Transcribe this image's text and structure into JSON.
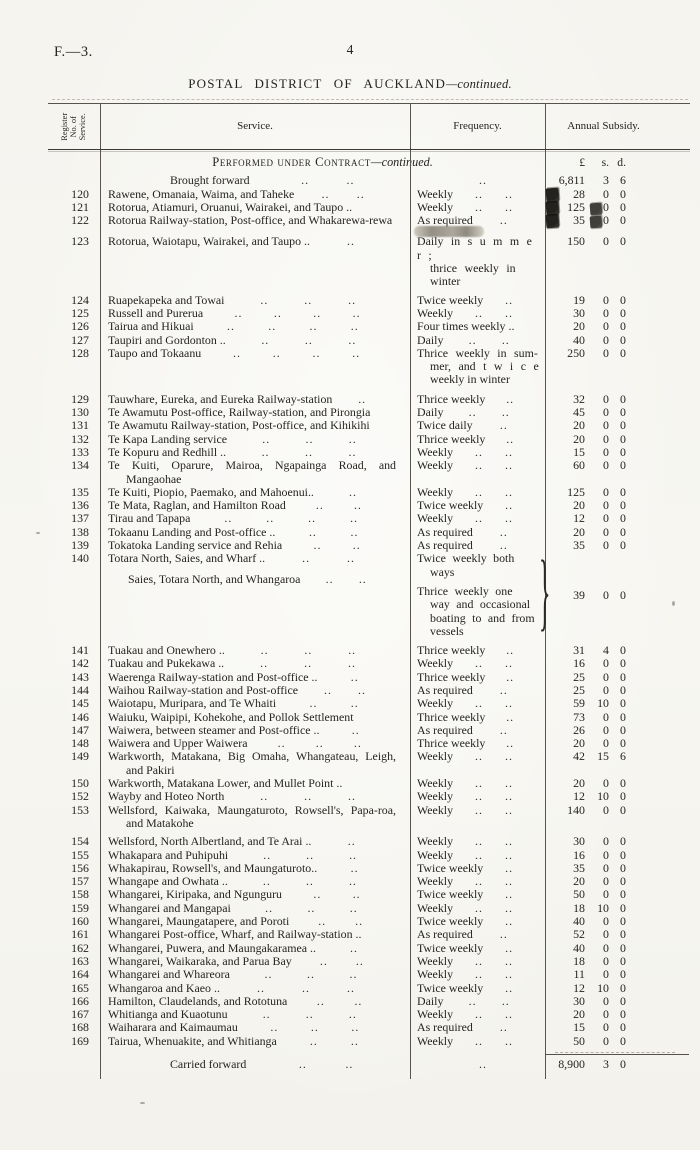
{
  "page": {
    "doc_ref": "F.—3.",
    "page_number": "4",
    "title": "POSTAL DISTRICT OF AUCKLAND",
    "title_continued": "—continued.",
    "section_heading": "Performed under Contract",
    "section_continued": "—continued.",
    "currency": {
      "pounds": "£",
      "shillings": "s.",
      "pence": "d."
    }
  },
  "table": {
    "dot_pair": "..",
    "headers": {
      "register": [
        "Register",
        "No. of",
        "Service."
      ],
      "service": "Service.",
      "frequency": "Frequency.",
      "subsidy": "Annual Subsidy."
    },
    "rows": [
      {
        "type": "total",
        "service": "Brought forward",
        "sd": 2,
        "f": "",
        "fd": 1,
        "L": "6,811",
        "S": "3",
        "D": "6"
      },
      {
        "no": "120",
        "service": "Rawene, Omanaia, Waima, and Taheke",
        "sd": 2,
        "f": "Weekly",
        "fd": 2,
        "L": "28",
        "S": "0",
        "D": "0",
        "marks": [
          "stamp-left"
        ]
      },
      {
        "no": "121",
        "service": "Rotorua, Atiamuri, Oruanui, Wairakei, and Taupo ..",
        "sd": 0,
        "f": "Weekly",
        "fd": 2,
        "L": "125",
        "S": "0",
        "D": "0",
        "marks": [
          "stamp-left",
          "stamp-mid"
        ]
      },
      {
        "no": "122",
        "service": "Rotorua Railway-station, Post-office, and Whakarewa-rewa",
        "sd": 0,
        "f": "As required",
        "fd": 1,
        "L": "35",
        "S": "0",
        "D": "0",
        "marks": [
          "stamp-left",
          "stamp-mid",
          "smudge-frequency"
        ]
      },
      {
        "no": "123",
        "gap": 8,
        "service": "Rotorua, Waiotapu, Wairakei, and Taupo ..",
        "sd": 1,
        "fl": [
          "Daily in s u m m e r ;",
          "thrice weekly in",
          "winter"
        ],
        "L": "150",
        "S": "0",
        "D": "0"
      },
      {
        "no": "124",
        "gap": 5,
        "service": "Ruapekapeka and Towai",
        "sd": 3,
        "f": "Twice weekly",
        "fd": 1,
        "L": "19",
        "S": "0",
        "D": "0"
      },
      {
        "no": "125",
        "service": "Russell and Purerua",
        "sd": 4,
        "f": "Weekly",
        "fd": 2,
        "L": "30",
        "S": "0",
        "D": "0"
      },
      {
        "no": "126",
        "service": "Tairua and Hikuai",
        "sd": 4,
        "f": "Four times weekly ..",
        "fd": 0,
        "L": "20",
        "S": "0",
        "D": "0"
      },
      {
        "no": "127",
        "service": "Taupiri and Gordonton ..",
        "sd": 3,
        "f": "Daily",
        "fd": 2,
        "L": "40",
        "S": "0",
        "D": "0"
      },
      {
        "no": "128",
        "service": "Taupo and Tokaanu",
        "sd": 4,
        "fl": [
          "Thrice weekly in sum-",
          "mer, and t w i c e",
          "weekly in winter"
        ],
        "L": "250",
        "S": "0",
        "D": "0"
      },
      {
        "no": "129",
        "gap": 6,
        "service": "Tauwhare, Eureka, and Eureka Railway-station",
        "sd": 1,
        "f": "Thrice weekly",
        "fd": 1,
        "L": "32",
        "S": "0",
        "D": "0"
      },
      {
        "no": "130",
        "service": "Te Awamutu Post-office, Railway-station, and Pirongia",
        "sd": 0,
        "f": "Daily",
        "fd": 2,
        "L": "45",
        "S": "0",
        "D": "0"
      },
      {
        "no": "131",
        "service": "Te Awamutu Railway-station, Post-office, and Kihikihi",
        "sd": 0,
        "f": "Twice daily",
        "fd": 1,
        "L": "20",
        "S": "0",
        "D": "0"
      },
      {
        "no": "132",
        "service": "Te Kapa Landing service",
        "sd": 3,
        "f": "Thrice weekly",
        "fd": 1,
        "L": "20",
        "S": "0",
        "D": "0"
      },
      {
        "no": "133",
        "service": "Te Kopuru and Redhill ..",
        "sd": 3,
        "f": "Weekly",
        "fd": 2,
        "L": "15",
        "S": "0",
        "D": "0"
      },
      {
        "no": "134",
        "service": "Te Kuiti, Oparure, Mairoa, Ngapainga Road, and Mangaohae",
        "sd": 0,
        "f": "Weekly",
        "fd": 2,
        "L": "60",
        "S": "0",
        "D": "0"
      },
      {
        "no": "135",
        "service": "Te Kuiti, Piopio, Paemako, and Mahoenui..",
        "sd": 1,
        "f": "Weekly",
        "fd": 2,
        "L": "125",
        "S": "0",
        "D": "0"
      },
      {
        "no": "136",
        "service": "Te Mata, Raglan, and Hamilton Road",
        "sd": 2,
        "f": "Twice weekly",
        "fd": 1,
        "L": "20",
        "S": "0",
        "D": "0"
      },
      {
        "no": "137",
        "service": "Tirau and Tapapa",
        "sd": 4,
        "f": "Weekly",
        "fd": 2,
        "L": "12",
        "S": "0",
        "D": "0"
      },
      {
        "no": "138",
        "service": "Tokaanu Landing and Post-office ..",
        "sd": 2,
        "f": "As required",
        "fd": 1,
        "L": "20",
        "S": "0",
        "D": "0"
      },
      {
        "no": "139",
        "service": "Tokatoka Landing service and Rehia",
        "sd": 2,
        "f": "As required",
        "fd": 1,
        "L": "35",
        "S": "0",
        "D": "0"
      },
      {
        "no": "140",
        "type": "double",
        "service": "Totara North, Saies, and Wharf ..",
        "sd": 2,
        "service2": "Saies, Totara North, and Whangaroa",
        "sd2": 2,
        "fl": [
          "Twice weekly both",
          "ways"
        ],
        "fl2": [
          "Thrice weekly one",
          "way and occasional",
          "boating to and from",
          "vessels"
        ],
        "L": "39",
        "S": "0",
        "D": "0"
      },
      {
        "no": "141",
        "gap": 6,
        "service": "Tuakau and Onewhero ..",
        "sd": 3,
        "f": "Thrice weekly",
        "fd": 1,
        "L": "31",
        "S": "4",
        "D": "0"
      },
      {
        "no": "142",
        "service": "Tuakau and Pukekawa ..",
        "sd": 3,
        "f": "Weekly",
        "fd": 2,
        "L": "16",
        "S": "0",
        "D": "0"
      },
      {
        "no": "143",
        "service": "Waerenga Railway-station and Post-office ..",
        "sd": 1,
        "f": "Thrice weekly",
        "fd": 1,
        "L": "25",
        "S": "0",
        "D": "0"
      },
      {
        "no": "144",
        "service": "Waihou Railway-station and Post-office",
        "sd": 2,
        "f": "As required",
        "fd": 1,
        "L": "25",
        "S": "0",
        "D": "0"
      },
      {
        "no": "145",
        "service": "Waiotapu, Muripara, and Te Whaiti",
        "sd": 2,
        "f": "Weekly",
        "fd": 2,
        "L": "59",
        "S": "10",
        "D": "0"
      },
      {
        "no": "146",
        "service": "Waiuku, Waipipi, Kohekohe, and Pollok Settlement",
        "sd": 0,
        "f": "Thrice weekly",
        "fd": 1,
        "L": "73",
        "S": "0",
        "D": "0"
      },
      {
        "no": "147",
        "service": "Waiwera, between steamer and Post-office ..",
        "sd": 1,
        "f": "As required",
        "fd": 1,
        "L": "26",
        "S": "0",
        "D": "0"
      },
      {
        "no": "148",
        "service": "Waiwera and Upper Waiwera",
        "sd": 3,
        "f": "Thrice weekly",
        "fd": 1,
        "L": "20",
        "S": "0",
        "D": "0"
      },
      {
        "no": "149",
        "service": "Warkworth, Matakana, Big Omaha, Whangateau, Leigh, and Pakiri",
        "sd": 0,
        "f": "Weekly",
        "fd": 2,
        "L": "42",
        "S": "15",
        "D": "6"
      },
      {
        "no": "150",
        "service": "Warkworth, Matakana Lower, and Mullet Point ..",
        "sd": 0,
        "f": "Weekly",
        "fd": 2,
        "L": "20",
        "S": "0",
        "D": "0"
      },
      {
        "no": "152",
        "service": "Wayby and Hoteo North",
        "sd": 3,
        "f": "Weekly",
        "fd": 2,
        "L": "12",
        "S": "10",
        "D": "0"
      },
      {
        "no": "153",
        "service": "Wellsford, Kaiwaka, Maungaturoto, Rowsell's, Papa-roa, and Matakohe",
        "sd": 0,
        "f": "Weekly",
        "fd": 2,
        "L": "140",
        "S": "0",
        "D": "0"
      },
      {
        "no": "154",
        "gap": 5,
        "service": "Wellsford, North Albertland, and Te Arai ..",
        "sd": 1,
        "f": "Weekly",
        "fd": 2,
        "L": "30",
        "S": "0",
        "D": "0"
      },
      {
        "no": "155",
        "service": "Whakapara and Puhipuhi",
        "sd": 3,
        "f": "Weekly",
        "fd": 2,
        "L": "16",
        "S": "0",
        "D": "0"
      },
      {
        "no": "156",
        "service": "Whakapirau, Rowsell's, and Maungaturoto..",
        "sd": 1,
        "f": "Twice weekly",
        "fd": 1,
        "L": "35",
        "S": "0",
        "D": "0"
      },
      {
        "no": "157",
        "service": "Whangape and Owhata ..",
        "sd": 3,
        "f": "Weekly",
        "fd": 2,
        "L": "20",
        "S": "0",
        "D": "0"
      },
      {
        "no": "158",
        "service": "Whangarei, Kiripaka, and Ngunguru",
        "sd": 2,
        "f": "Twice weekly",
        "fd": 1,
        "L": "50",
        "S": "0",
        "D": "0"
      },
      {
        "no": "159",
        "service": "Whangarei and Mangapai",
        "sd": 3,
        "f": "Weekly",
        "fd": 2,
        "L": "18",
        "S": "10",
        "D": "0"
      },
      {
        "no": "160",
        "service": "Whangarei, Maungatapere, and Poroti",
        "sd": 2,
        "f": "Twice weekly",
        "fd": 1,
        "L": "40",
        "S": "0",
        "D": "0"
      },
      {
        "no": "161",
        "service": "Whangarei Post-office, Wharf, and Railway-station ..",
        "sd": 0,
        "f": "As required",
        "fd": 1,
        "L": "52",
        "S": "0",
        "D": "0"
      },
      {
        "no": "162",
        "service": "Whangarei, Puwera, and Maungakaramea ..",
        "sd": 1,
        "f": "Twice weekly",
        "fd": 1,
        "L": "40",
        "S": "0",
        "D": "0"
      },
      {
        "no": "163",
        "service": "Whangarei, Waikaraka, and Parua Bay",
        "sd": 2,
        "f": "Weekly",
        "fd": 2,
        "L": "18",
        "S": "0",
        "D": "0"
      },
      {
        "no": "164",
        "service": "Whangarei and Whareora",
        "sd": 3,
        "f": "Weekly",
        "fd": 2,
        "L": "11",
        "S": "0",
        "D": "0"
      },
      {
        "no": "165",
        "service": "Whangaroa and Kaeo ..",
        "sd": 3,
        "f": "Twice weekly",
        "fd": 1,
        "L": "12",
        "S": "10",
        "D": "0"
      },
      {
        "no": "166",
        "service": "Hamilton, Claudelands, and Rototuna",
        "sd": 2,
        "f": "Daily",
        "fd": 2,
        "L": "30",
        "S": "0",
        "D": "0"
      },
      {
        "no": "167",
        "service": "Whitianga and Kuaotunu",
        "sd": 3,
        "f": "Weekly",
        "fd": 2,
        "L": "20",
        "S": "0",
        "D": "0"
      },
      {
        "no": "168",
        "service": "Waiharara and Kaimaumau",
        "sd": 3,
        "f": "As required",
        "fd": 1,
        "L": "15",
        "S": "0",
        "D": "0"
      },
      {
        "no": "169",
        "service": "Tairua, Whenuakite, and Whitianga",
        "sd": 2,
        "f": "Weekly",
        "fd": 2,
        "L": "50",
        "S": "0",
        "D": "0"
      },
      {
        "type": "total",
        "gap": 10,
        "rule": true,
        "service": "Carried forward",
        "sd": 2,
        "f": "",
        "fd": 1,
        "L": "8,900",
        "S": "3",
        "D": "0"
      }
    ]
  },
  "colors": {
    "ink": "#262420",
    "paper": "#f7f6f1",
    "rule": "#59554c"
  }
}
